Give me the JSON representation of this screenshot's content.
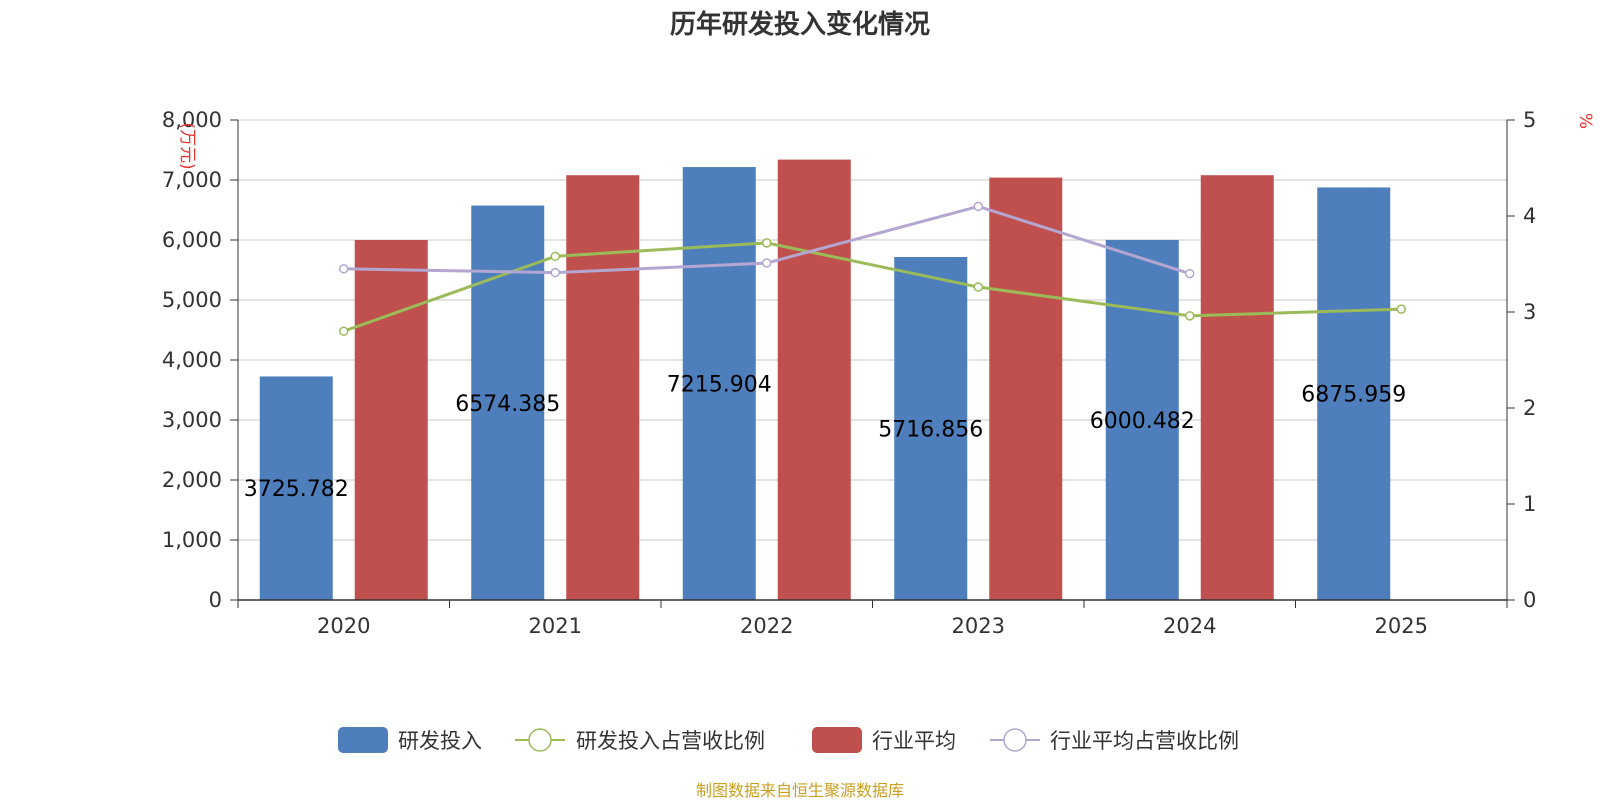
{
  "chart_data": {
    "type": "bar",
    "title": "历年研发投入变化情况",
    "categories": [
      "2020",
      "2021",
      "2022",
      "2023",
      "2024",
      "2025"
    ],
    "y_left": {
      "unit": "(万元)",
      "min": 0,
      "max": 8000,
      "ticks": [
        "0",
        "1,000",
        "2,000",
        "3,000",
        "4,000",
        "5,000",
        "6,000",
        "7,000",
        "8,000"
      ]
    },
    "y_right": {
      "unit": "%",
      "min": 0,
      "max": 5,
      "ticks": [
        "0",
        "1",
        "2",
        "3",
        "4",
        "5"
      ]
    },
    "series": [
      {
        "name": "研发投入",
        "kind": "bar",
        "axis": "left",
        "color": "#4e7fbc",
        "values": [
          3725.782,
          6574.385,
          7215.904,
          5716.856,
          6000.482,
          6875.959
        ],
        "labels": [
          "3725.782",
          "6574.385",
          "7215.904",
          "5716.856",
          "6000.482",
          "6875.959"
        ]
      },
      {
        "name": "研发投入占营收比例",
        "kind": "line",
        "axis": "right",
        "color": "#9bbb59",
        "values": [
          2.8,
          3.58,
          3.72,
          3.26,
          2.96,
          3.03
        ]
      },
      {
        "name": "行业平均",
        "kind": "bar",
        "axis": "left",
        "color": "#c0504d",
        "values": [
          6000,
          7080,
          7340,
          7040,
          7080,
          null
        ]
      },
      {
        "name": "行业平均占营收比例",
        "kind": "line",
        "axis": "right",
        "color": "#b3a6d1",
        "values": [
          3.45,
          3.41,
          3.51,
          4.1,
          3.4,
          null
        ]
      }
    ],
    "legend_position": "bottom",
    "grid": true
  },
  "footer": {
    "source": "制图数据来自恒生聚源数据库"
  }
}
